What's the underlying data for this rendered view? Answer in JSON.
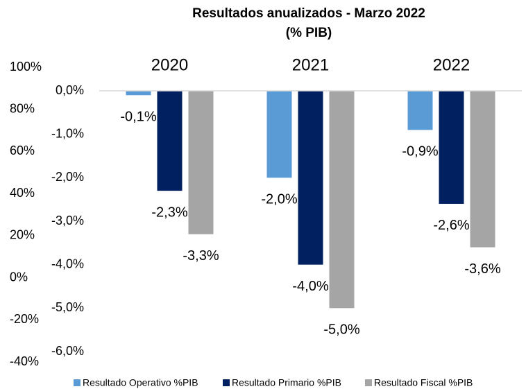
{
  "chart_data": {
    "type": "bar",
    "title": "Resultados anualizados - Marzo 2022",
    "subtitle": "(% PIB)",
    "categories": [
      "2020",
      "2021",
      "2022"
    ],
    "series": [
      {
        "name": "Resultado Operativo %PIB",
        "color": "#5b9bd5",
        "values": [
          -0.1,
          -2.0,
          -0.9
        ],
        "value_labels": [
          "-0,1%",
          "-2,0%",
          "-0,9%"
        ]
      },
      {
        "name": "Resultado Primario %PIB",
        "color": "#002060",
        "values": [
          -2.3,
          -4.0,
          -2.6
        ],
        "value_labels": [
          "-2,3%",
          "-4,0%",
          "-2,6%"
        ]
      },
      {
        "name": "Resultado Fiscal %PIB",
        "color": "#a5a5a5",
        "values": [
          -3.3,
          -5.0,
          -3.6
        ],
        "value_labels": [
          "-3,3%",
          "-5,0%",
          "-3,6%"
        ]
      }
    ],
    "ylim": [
      -6,
      0
    ],
    "yticks": [
      {
        "value": 0,
        "label": "0,0%"
      },
      {
        "value": -1,
        "label": "-1,0%"
      },
      {
        "value": -2,
        "label": "-2,0%"
      },
      {
        "value": -3,
        "label": "-3,0%"
      },
      {
        "value": -4,
        "label": "-4,0%"
      },
      {
        "value": -5,
        "label": "-5,0%"
      },
      {
        "value": -6,
        "label": "-6,0%"
      }
    ],
    "y2lim": [
      -40,
      100
    ],
    "y2ticks": [
      {
        "value": 100,
        "label": "100%"
      },
      {
        "value": 80,
        "label": "80%"
      },
      {
        "value": 60,
        "label": "60%"
      },
      {
        "value": 40,
        "label": "40%"
      },
      {
        "value": 20,
        "label": "20%"
      },
      {
        "value": 0,
        "label": "0%"
      },
      {
        "value": -20,
        "label": "-20%"
      },
      {
        "value": -40,
        "label": "-40%"
      }
    ],
    "legend": "bottom"
  }
}
